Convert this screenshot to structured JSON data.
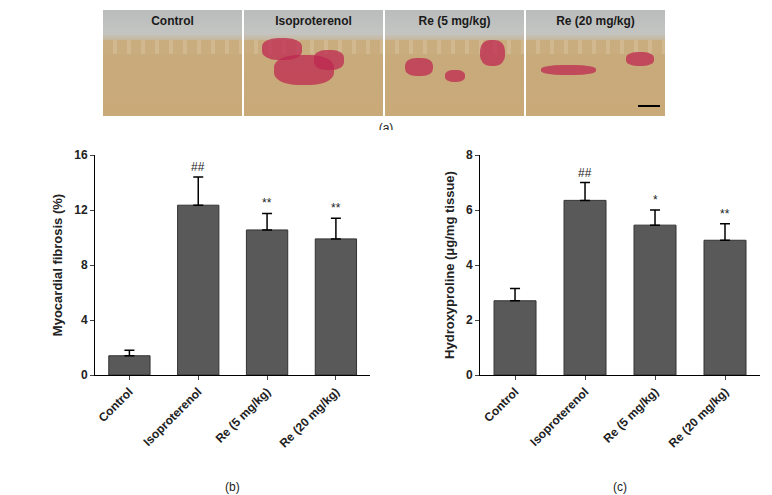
{
  "image_panel": {
    "label": "(a)",
    "titles": [
      "Control",
      "Isoproterenol",
      "Re (5 mg/kg)",
      "Re (20 mg/kg)"
    ]
  },
  "chart_data": [
    {
      "type": "bar",
      "caption": "(b)",
      "y_label": "Myocardial fibrosis (%)",
      "categories": [
        "Control",
        "Isoproterenol",
        "Re (5 mg/kg)",
        "Re (20 mg/kg)"
      ],
      "values": [
        1.4,
        12.35,
        10.55,
        9.9
      ],
      "errors": [
        0.4,
        2.05,
        1.2,
        1.5
      ],
      "color": "#595959",
      "ylim": [
        0,
        16
      ],
      "yticks": [
        0,
        4,
        8,
        12,
        16
      ],
      "grid": false,
      "annotations": [
        {
          "category": "Isoproterenol",
          "text": "##"
        },
        {
          "category": "Re (5 mg/kg)",
          "text": "**"
        },
        {
          "category": "Re (20 mg/kg)",
          "text": "**"
        }
      ]
    },
    {
      "type": "bar",
      "caption": "(c)",
      "y_label": "Hydroxyproline (μg/mg tissue)",
      "categories": [
        "Control",
        "Isoproterenol",
        "Re (5 mg/kg)",
        "Re (20 mg/kg)"
      ],
      "values": [
        2.7,
        6.35,
        5.45,
        4.9
      ],
      "errors": [
        0.45,
        0.65,
        0.55,
        0.6
      ],
      "color": "#595959",
      "ylim": [
        0,
        8
      ],
      "yticks": [
        0,
        2,
        4,
        6,
        8
      ],
      "grid": false,
      "annotations": [
        {
          "category": "Isoproterenol",
          "text": "##"
        },
        {
          "category": "Re (5 mg/kg)",
          "text": "*"
        },
        {
          "category": "Re (20 mg/kg)",
          "text": "**"
        }
      ]
    }
  ]
}
